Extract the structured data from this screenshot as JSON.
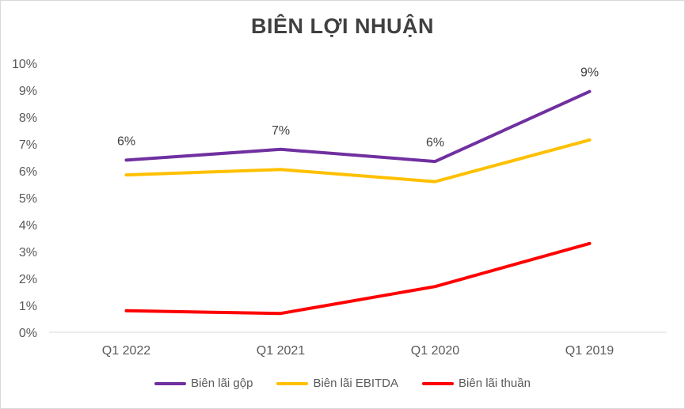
{
  "chart_data": {
    "type": "line",
    "title": "BIÊN LỢI NHUẬN",
    "categories": [
      "Q1 2022",
      "Q1 2021",
      "Q1 2020",
      "Q1 2019"
    ],
    "ylim": [
      0,
      10
    ],
    "yticks": [
      "0%",
      "1%",
      "2%",
      "3%",
      "4%",
      "5%",
      "6%",
      "7%",
      "8%",
      "9%",
      "10%"
    ],
    "grid": false,
    "legend_position": "bottom",
    "series": [
      {
        "name": "Biên lãi gộp",
        "color": "#7030a0",
        "values": [
          6.4,
          6.8,
          6.35,
          8.95
        ],
        "labels": [
          "6%",
          "7%",
          "6%",
          "9%"
        ]
      },
      {
        "name": "Biên lãi EBITDA",
        "color": "#ffc000",
        "values": [
          5.85,
          6.05,
          5.6,
          7.15
        ]
      },
      {
        "name": "Biên lãi thuần",
        "color": "#ff0000",
        "values": [
          0.8,
          0.7,
          1.7,
          3.3
        ]
      }
    ]
  }
}
